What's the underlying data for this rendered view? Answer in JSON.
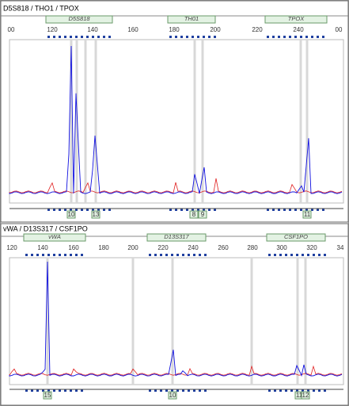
{
  "panels": [
    {
      "title": "D5S818 / THO1 / TPOX",
      "ticks": [
        "00",
        "120",
        "140",
        "160",
        "180",
        "200",
        "220",
        "240",
        "00"
      ],
      "loci": [
        "D5S818",
        "TH01",
        "TPOX"
      ],
      "alleles": [
        "10",
        "13",
        "8",
        "9",
        "11"
      ]
    },
    {
      "title": "vWA / D13S317 / CSF1PO",
      "ticks": [
        "120",
        "140",
        "160",
        "180",
        "200",
        "220",
        "240",
        "260",
        "280",
        "300",
        "320",
        "34"
      ],
      "loci": [
        "vWA",
        "D13S317",
        "CSF1PO"
      ],
      "alleles": [
        "15",
        "10",
        "11",
        "12"
      ]
    }
  ]
}
